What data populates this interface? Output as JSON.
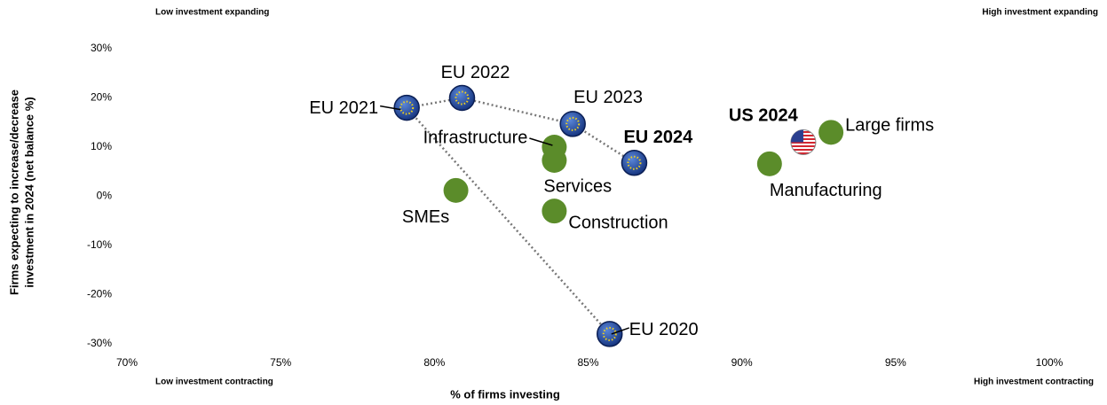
{
  "chart_data": {
    "type": "scatter",
    "corner_labels": [
      "Low investment expanding",
      "High investment expanding",
      "Low investment contracting",
      "High investment contracting"
    ],
    "xlabel": "% of firms investing",
    "ylabel": [
      "Firms expecting to increase/decrease",
      "investment in 2024 (net balance %)"
    ],
    "xlim": [
      70,
      100
    ],
    "ylim": [
      -30,
      30
    ],
    "xticks": [
      {
        "value": 70,
        "label": "70%"
      },
      {
        "value": 75,
        "label": "75%"
      },
      {
        "value": 80,
        "label": "80%"
      },
      {
        "value": 85,
        "label": "85%"
      },
      {
        "value": 90,
        "label": "90%"
      },
      {
        "value": 95,
        "label": "95%"
      },
      {
        "value": 100,
        "label": "100%"
      }
    ],
    "yticks": [
      {
        "value": 30,
        "label": "30%"
      },
      {
        "value": 20,
        "label": "20%"
      },
      {
        "value": 10,
        "label": "10%"
      },
      {
        "value": 0,
        "label": "0%"
      },
      {
        "value": -10,
        "label": "-10%"
      },
      {
        "value": -20,
        "label": "-20%"
      },
      {
        "value": -30,
        "label": "-30%"
      }
    ],
    "grid": false,
    "series": [
      {
        "marker": "eu",
        "color": "#1f3f8f",
        "connect": true,
        "bold_last": true,
        "labels": [
          "EU 2020",
          "EU 2021",
          "EU 2022",
          "EU 2023",
          "EU 2024"
        ],
        "x": [
          85.7,
          79.1,
          80.9,
          84.5,
          86.5
        ],
        "y": [
          -28,
          18,
          20,
          14.7,
          6.8
        ]
      },
      {
        "marker": "us",
        "color": "#c8102e",
        "bold_last": true,
        "labels": [
          "US 2024"
        ],
        "x": [
          92.0
        ],
        "y": [
          11
        ]
      },
      {
        "marker": "dot",
        "color": "#5b8c2a",
        "labels": [
          "Large firms",
          "Manufacturing",
          "Infrastructure",
          "Services",
          "Construction",
          "SMEs"
        ],
        "x": [
          92.9,
          90.9,
          83.9,
          83.9,
          83.9,
          80.7
        ],
        "y": [
          13,
          6.6,
          10,
          7.3,
          -3,
          1.2
        ]
      }
    ]
  }
}
